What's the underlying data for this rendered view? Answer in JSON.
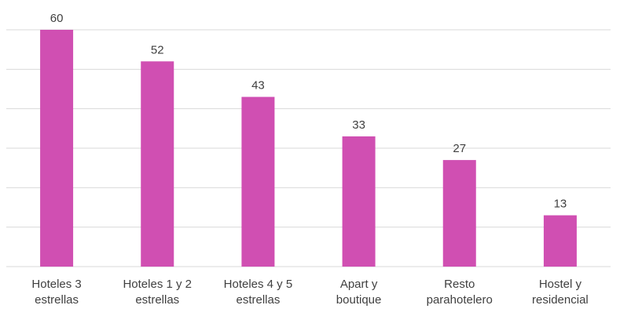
{
  "chart_data": {
    "type": "bar",
    "categories": [
      [
        "Hoteles 3",
        "estrellas"
      ],
      [
        "Hoteles 1 y 2",
        "estrellas"
      ],
      [
        "Hoteles 4 y 5",
        "estrellas"
      ],
      [
        "Apart y",
        "boutique"
      ],
      [
        "Resto",
        "parahotelero"
      ],
      [
        "Hostel y",
        "residencial"
      ]
    ],
    "values": [
      60,
      52,
      43,
      33,
      27,
      13
    ],
    "ylim": [
      0,
      60
    ],
    "grid": true,
    "legend": "none",
    "bar_color": "#d04fb2"
  }
}
